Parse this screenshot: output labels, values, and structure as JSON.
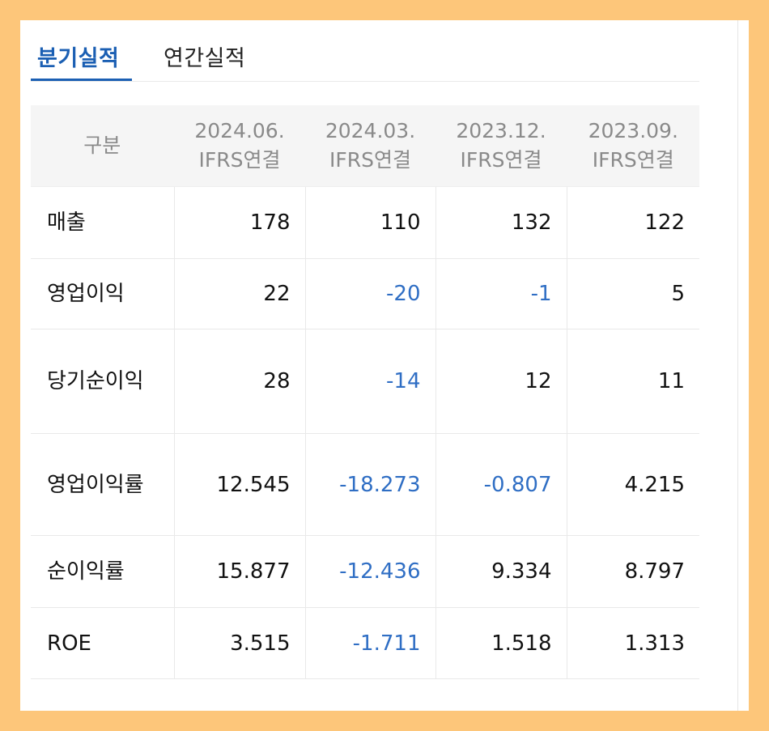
{
  "tabs": {
    "quarterly": "분기실적",
    "annual": "연간실적",
    "active": "quarterly"
  },
  "table": {
    "header_label": "구분",
    "columns": [
      {
        "period": "2024.06.",
        "basis": "IFRS연결"
      },
      {
        "period": "2024.03.",
        "basis": "IFRS연결"
      },
      {
        "period": "2023.12.",
        "basis": "IFRS연결"
      },
      {
        "period": "2023.09.",
        "basis": "IFRS연결"
      }
    ],
    "rows": [
      {
        "label": "매출",
        "values": [
          "178",
          "110",
          "132",
          "122"
        ]
      },
      {
        "label": "영업이익",
        "values": [
          "22",
          "-20",
          "-1",
          "5"
        ]
      },
      {
        "label": "당기순이익",
        "values": [
          "28",
          "-14",
          "12",
          "11"
        ]
      },
      {
        "label": "영업이익률",
        "values": [
          "12.545",
          "-18.273",
          "-0.807",
          "4.215"
        ]
      },
      {
        "label": "순이익률",
        "values": [
          "15.877",
          "-12.436",
          "9.334",
          "8.797"
        ]
      },
      {
        "label": "ROE",
        "values": [
          "3.515",
          "-1.711",
          "1.518",
          "1.313"
        ]
      }
    ]
  },
  "colors": {
    "background": "#fdc67a",
    "accent": "#1b5fb3",
    "negative": "#2f6ec4",
    "header_bg": "#f5f5f5"
  }
}
